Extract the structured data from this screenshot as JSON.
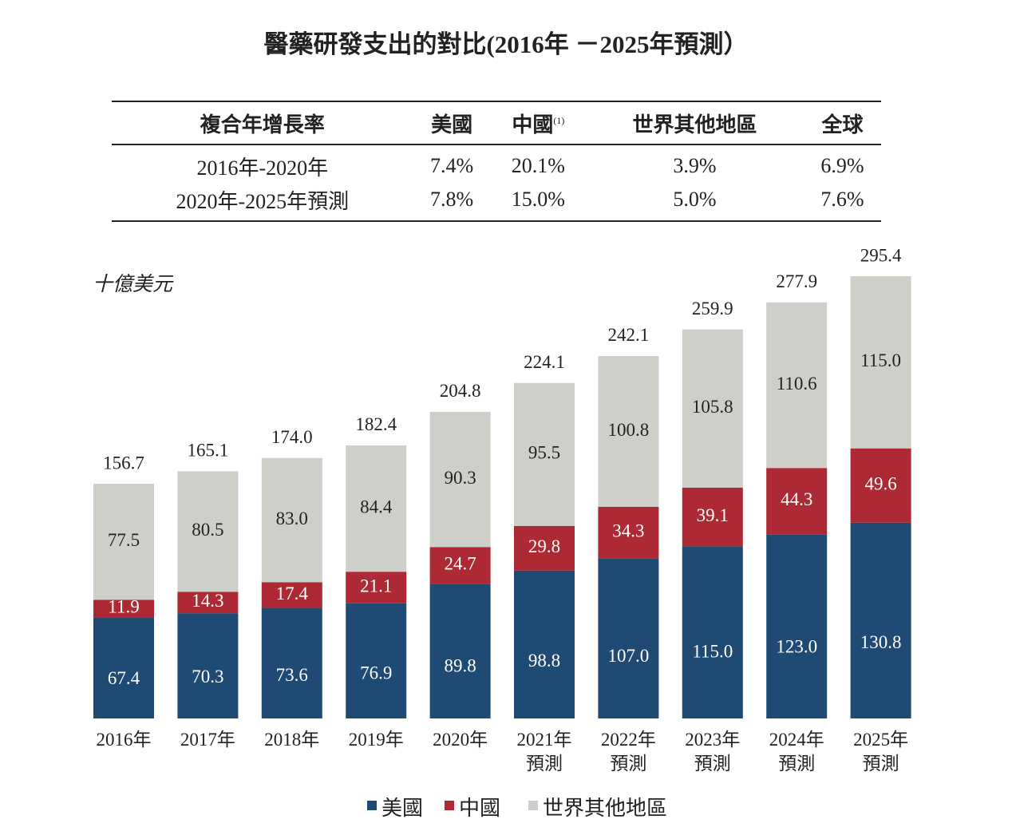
{
  "title": "醫藥研發支出的對比(2016年 －2025年預測）",
  "table": {
    "headers": [
      {
        "text": "複合年增長率"
      },
      {
        "text": "美國"
      },
      {
        "text": "中國",
        "sup": "(1)"
      },
      {
        "text": "世界其他地區"
      },
      {
        "text": "全球"
      }
    ],
    "rows": [
      [
        "2016年-2020年",
        "7.4%",
        "20.1%",
        "3.9%",
        "6.9%"
      ],
      [
        "2020年-2025年預測",
        "7.8%",
        "15.0%",
        "5.0%",
        "7.6%"
      ]
    ]
  },
  "chart_data": {
    "type": "stacked_bar",
    "unit_label": "十億美元",
    "categories": [
      "2016年",
      "2017年",
      "2018年",
      "2019年",
      "2020年",
      "2021年\n預測",
      "2022年\n預測",
      "2023年\n預測",
      "2024年\n預測",
      "2025年\n預測"
    ],
    "series": [
      {
        "name": "美國",
        "color": "#1e4a73",
        "label_color": "#ffffff",
        "values": [
          67.4,
          70.3,
          73.6,
          76.9,
          89.8,
          98.8,
          107.0,
          115.0,
          123.0,
          130.8
        ],
        "value_labels": [
          "67.4",
          "70.3",
          "73.6",
          "76.9",
          "89.8",
          "98.8",
          "107.0",
          "115.0",
          "123.0",
          "130.8"
        ]
      },
      {
        "name": "中國",
        "color": "#ad2a35",
        "label_color": "#ffffff",
        "values": [
          11.9,
          14.3,
          17.4,
          21.1,
          24.7,
          29.8,
          34.3,
          39.1,
          44.3,
          49.6
        ],
        "value_labels": [
          "11.9",
          "14.3",
          "17.4",
          "21.1",
          "24.7",
          "29.8",
          "34.3",
          "39.1",
          "44.3",
          "49.6"
        ]
      },
      {
        "name": "世界其他地區",
        "color": "#cfcfca",
        "label_color": "#222222",
        "values": [
          77.5,
          80.5,
          83.0,
          84.4,
          90.3,
          95.5,
          100.8,
          105.8,
          110.6,
          115.0
        ],
        "value_labels": [
          "77.5",
          "80.5",
          "83.0",
          "84.4",
          "90.3",
          "95.5",
          "100.8",
          "105.8",
          "110.6",
          "115.0"
        ]
      }
    ],
    "totals": [
      156.7,
      165.1,
      174.0,
      182.4,
      204.8,
      224.1,
      242.1,
      259.9,
      277.9,
      295.4
    ],
    "total_labels": [
      "156.7",
      "165.1",
      "174.0",
      "182.4",
      "204.8",
      "224.1",
      "242.1",
      "259.9",
      "277.9",
      "295.4"
    ]
  }
}
